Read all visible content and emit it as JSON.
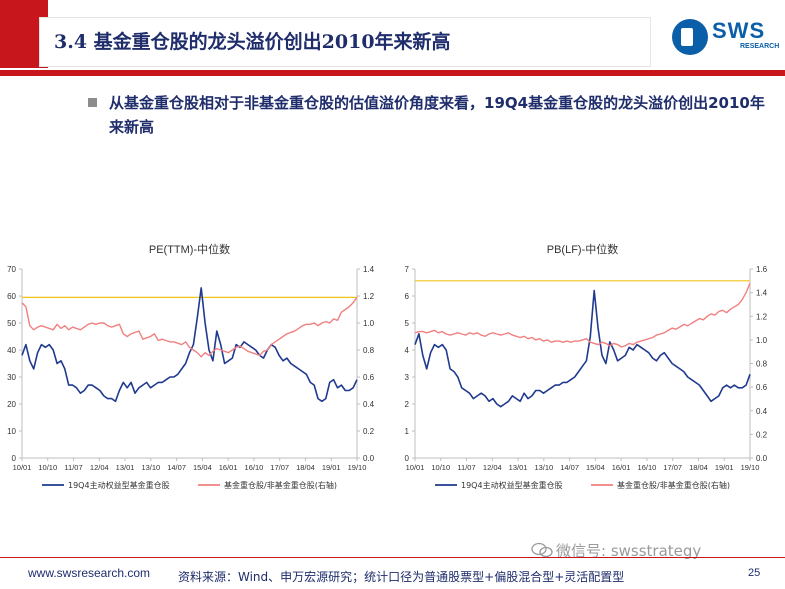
{
  "title": "3.4 基金重仓股的龙头溢价创出2010年来新高",
  "logo": {
    "text": "SWS",
    "sub": "RESEARCH"
  },
  "headline": "从基金重仓股相对于非基金重仓股的估值溢价角度来看，19Q4基金重仓股的龙头溢价创出2010年来新高",
  "footer": {
    "url": "www.swsresearch.com",
    "source": "资料来源：Wind、申万宏源研究；统计口径为普通股票型+偏股混合型+灵活配置型",
    "page": "25",
    "watermark": "微信号: swsstrategy"
  },
  "colors": {
    "series1": "#1f3a8f",
    "series2": "#f08080",
    "refline": "#f0c419",
    "axis": "#bfbfbf"
  },
  "chart_data": [
    {
      "type": "line",
      "title": "PE(TTM)-中位数",
      "xticks": [
        "10/01",
        "10/10",
        "11/07",
        "12/04",
        "13/01",
        "13/10",
        "14/07",
        "15/04",
        "16/01",
        "16/10",
        "17/07",
        "18/04",
        "19/01",
        "19/10"
      ],
      "ylim_left": [
        0,
        70
      ],
      "yticks_left": [
        "0",
        "10",
        "20",
        "30",
        "40",
        "50",
        "60",
        "70"
      ],
      "ylim_right": [
        0,
        1.4
      ],
      "yticks_right": [
        "0.0",
        "0.2",
        "0.4",
        "0.6",
        "0.8",
        "1.0",
        "1.2",
        "1.4"
      ],
      "ref_line_right": 1.19,
      "series": [
        {
          "name": "19Q4主动权益型基金重仓股",
          "axis": "left",
          "values": [
            38,
            42,
            36,
            33,
            39,
            42,
            41,
            42,
            40,
            35,
            36,
            33,
            27,
            27,
            26,
            24,
            25,
            27,
            27,
            26,
            25,
            23,
            22,
            22,
            21,
            25,
            28,
            26,
            28,
            24,
            26,
            27,
            28,
            26,
            27,
            28,
            28,
            29,
            30,
            30,
            31,
            33,
            35,
            39,
            42,
            52,
            63,
            50,
            40,
            36,
            47,
            42,
            35,
            36,
            37,
            42,
            41,
            43,
            42,
            41,
            40,
            38,
            37,
            40,
            42,
            41,
            38,
            36,
            37,
            35,
            34,
            33,
            32,
            31,
            28,
            27,
            22,
            21,
            22,
            28,
            29,
            26,
            27,
            25,
            25,
            26,
            29
          ]
        },
        {
          "name": "基金重仓股/非基金重仓股(右轴)",
          "axis": "right",
          "values": [
            1.15,
            1.12,
            0.98,
            0.95,
            0.97,
            0.98,
            0.97,
            0.96,
            0.95,
            0.99,
            0.96,
            0.98,
            0.95,
            0.97,
            0.96,
            0.95,
            0.97,
            0.99,
            1.0,
            0.99,
            1.0,
            1.0,
            0.98,
            0.97,
            0.98,
            0.99,
            0.92,
            0.9,
            0.92,
            0.93,
            0.94,
            0.88,
            0.89,
            0.9,
            0.92,
            0.87,
            0.88,
            0.87,
            0.86,
            0.86,
            0.85,
            0.84,
            0.86,
            0.82,
            0.8,
            0.78,
            0.75,
            0.78,
            0.76,
            0.79,
            0.81,
            0.8,
            0.79,
            0.78,
            0.8,
            0.82,
            0.83,
            0.81,
            0.79,
            0.78,
            0.77,
            0.76,
            0.79,
            0.8,
            0.84,
            0.86,
            0.88,
            0.9,
            0.92,
            0.93,
            0.94,
            0.96,
            0.98,
            0.99,
            0.99,
            1.0,
            0.98,
            1.0,
            1.01,
            1.0,
            1.03,
            1.02,
            1.08,
            1.1,
            1.12,
            1.15,
            1.19
          ]
        }
      ]
    },
    {
      "type": "line",
      "title": "PB(LF)-中位数",
      "xticks": [
        "10/01",
        "10/10",
        "11/07",
        "12/04",
        "13/01",
        "13/10",
        "14/07",
        "15/04",
        "16/01",
        "16/10",
        "17/07",
        "18/04",
        "19/01",
        "19/10"
      ],
      "ylim_left": [
        0,
        7
      ],
      "yticks_left": [
        "0",
        "1",
        "2",
        "3",
        "4",
        "5",
        "6",
        "7"
      ],
      "ylim_right": [
        0,
        1.6
      ],
      "yticks_right": [
        "0.0",
        "0.2",
        "0.4",
        "0.6",
        "0.8",
        "1.0",
        "1.2",
        "1.4",
        "1.6"
      ],
      "ref_line_right": 1.5,
      "series": [
        {
          "name": "19Q4主动权益型基金重仓股",
          "axis": "left",
          "values": [
            4.2,
            4.6,
            3.8,
            3.3,
            3.9,
            4.2,
            4.1,
            4.2,
            4.0,
            3.3,
            3.2,
            3.0,
            2.6,
            2.5,
            2.4,
            2.2,
            2.3,
            2.4,
            2.3,
            2.1,
            2.2,
            2.0,
            1.9,
            2.0,
            2.1,
            2.3,
            2.2,
            2.1,
            2.4,
            2.2,
            2.3,
            2.5,
            2.5,
            2.4,
            2.5,
            2.6,
            2.7,
            2.7,
            2.8,
            2.8,
            2.9,
            3.0,
            3.2,
            3.4,
            3.6,
            4.5,
            6.2,
            4.8,
            3.8,
            3.5,
            4.3,
            4.0,
            3.6,
            3.7,
            3.8,
            4.1,
            4.0,
            4.2,
            4.1,
            4.0,
            3.9,
            3.7,
            3.6,
            3.8,
            3.9,
            3.7,
            3.5,
            3.4,
            3.3,
            3.2,
            3.0,
            2.9,
            2.8,
            2.7,
            2.5,
            2.3,
            2.1,
            2.2,
            2.3,
            2.6,
            2.7,
            2.6,
            2.7,
            2.6,
            2.6,
            2.7,
            3.1
          ]
        },
        {
          "name": "基金重仓股/非基金重仓股(右轴)",
          "axis": "right",
          "values": [
            1.06,
            1.07,
            1.07,
            1.06,
            1.07,
            1.08,
            1.06,
            1.07,
            1.05,
            1.04,
            1.05,
            1.06,
            1.05,
            1.04,
            1.06,
            1.05,
            1.06,
            1.04,
            1.03,
            1.05,
            1.06,
            1.05,
            1.04,
            1.05,
            1.06,
            1.04,
            1.03,
            1.02,
            1.03,
            1.01,
            1.02,
            1.0,
            1.01,
            0.99,
            1.0,
            0.98,
            0.99,
            0.99,
            0.98,
            0.99,
            0.98,
            0.99,
            0.99,
            1.0,
            1.01,
            0.98,
            0.97,
            0.96,
            0.98,
            0.97,
            0.95,
            0.97,
            0.96,
            0.94,
            0.95,
            0.97,
            0.96,
            0.98,
            0.99,
            1.0,
            1.01,
            1.02,
            1.04,
            1.05,
            1.06,
            1.08,
            1.1,
            1.09,
            1.11,
            1.13,
            1.12,
            1.14,
            1.16,
            1.18,
            1.17,
            1.2,
            1.22,
            1.21,
            1.24,
            1.25,
            1.23,
            1.26,
            1.28,
            1.3,
            1.34,
            1.4,
            1.48
          ]
        }
      ]
    }
  ]
}
